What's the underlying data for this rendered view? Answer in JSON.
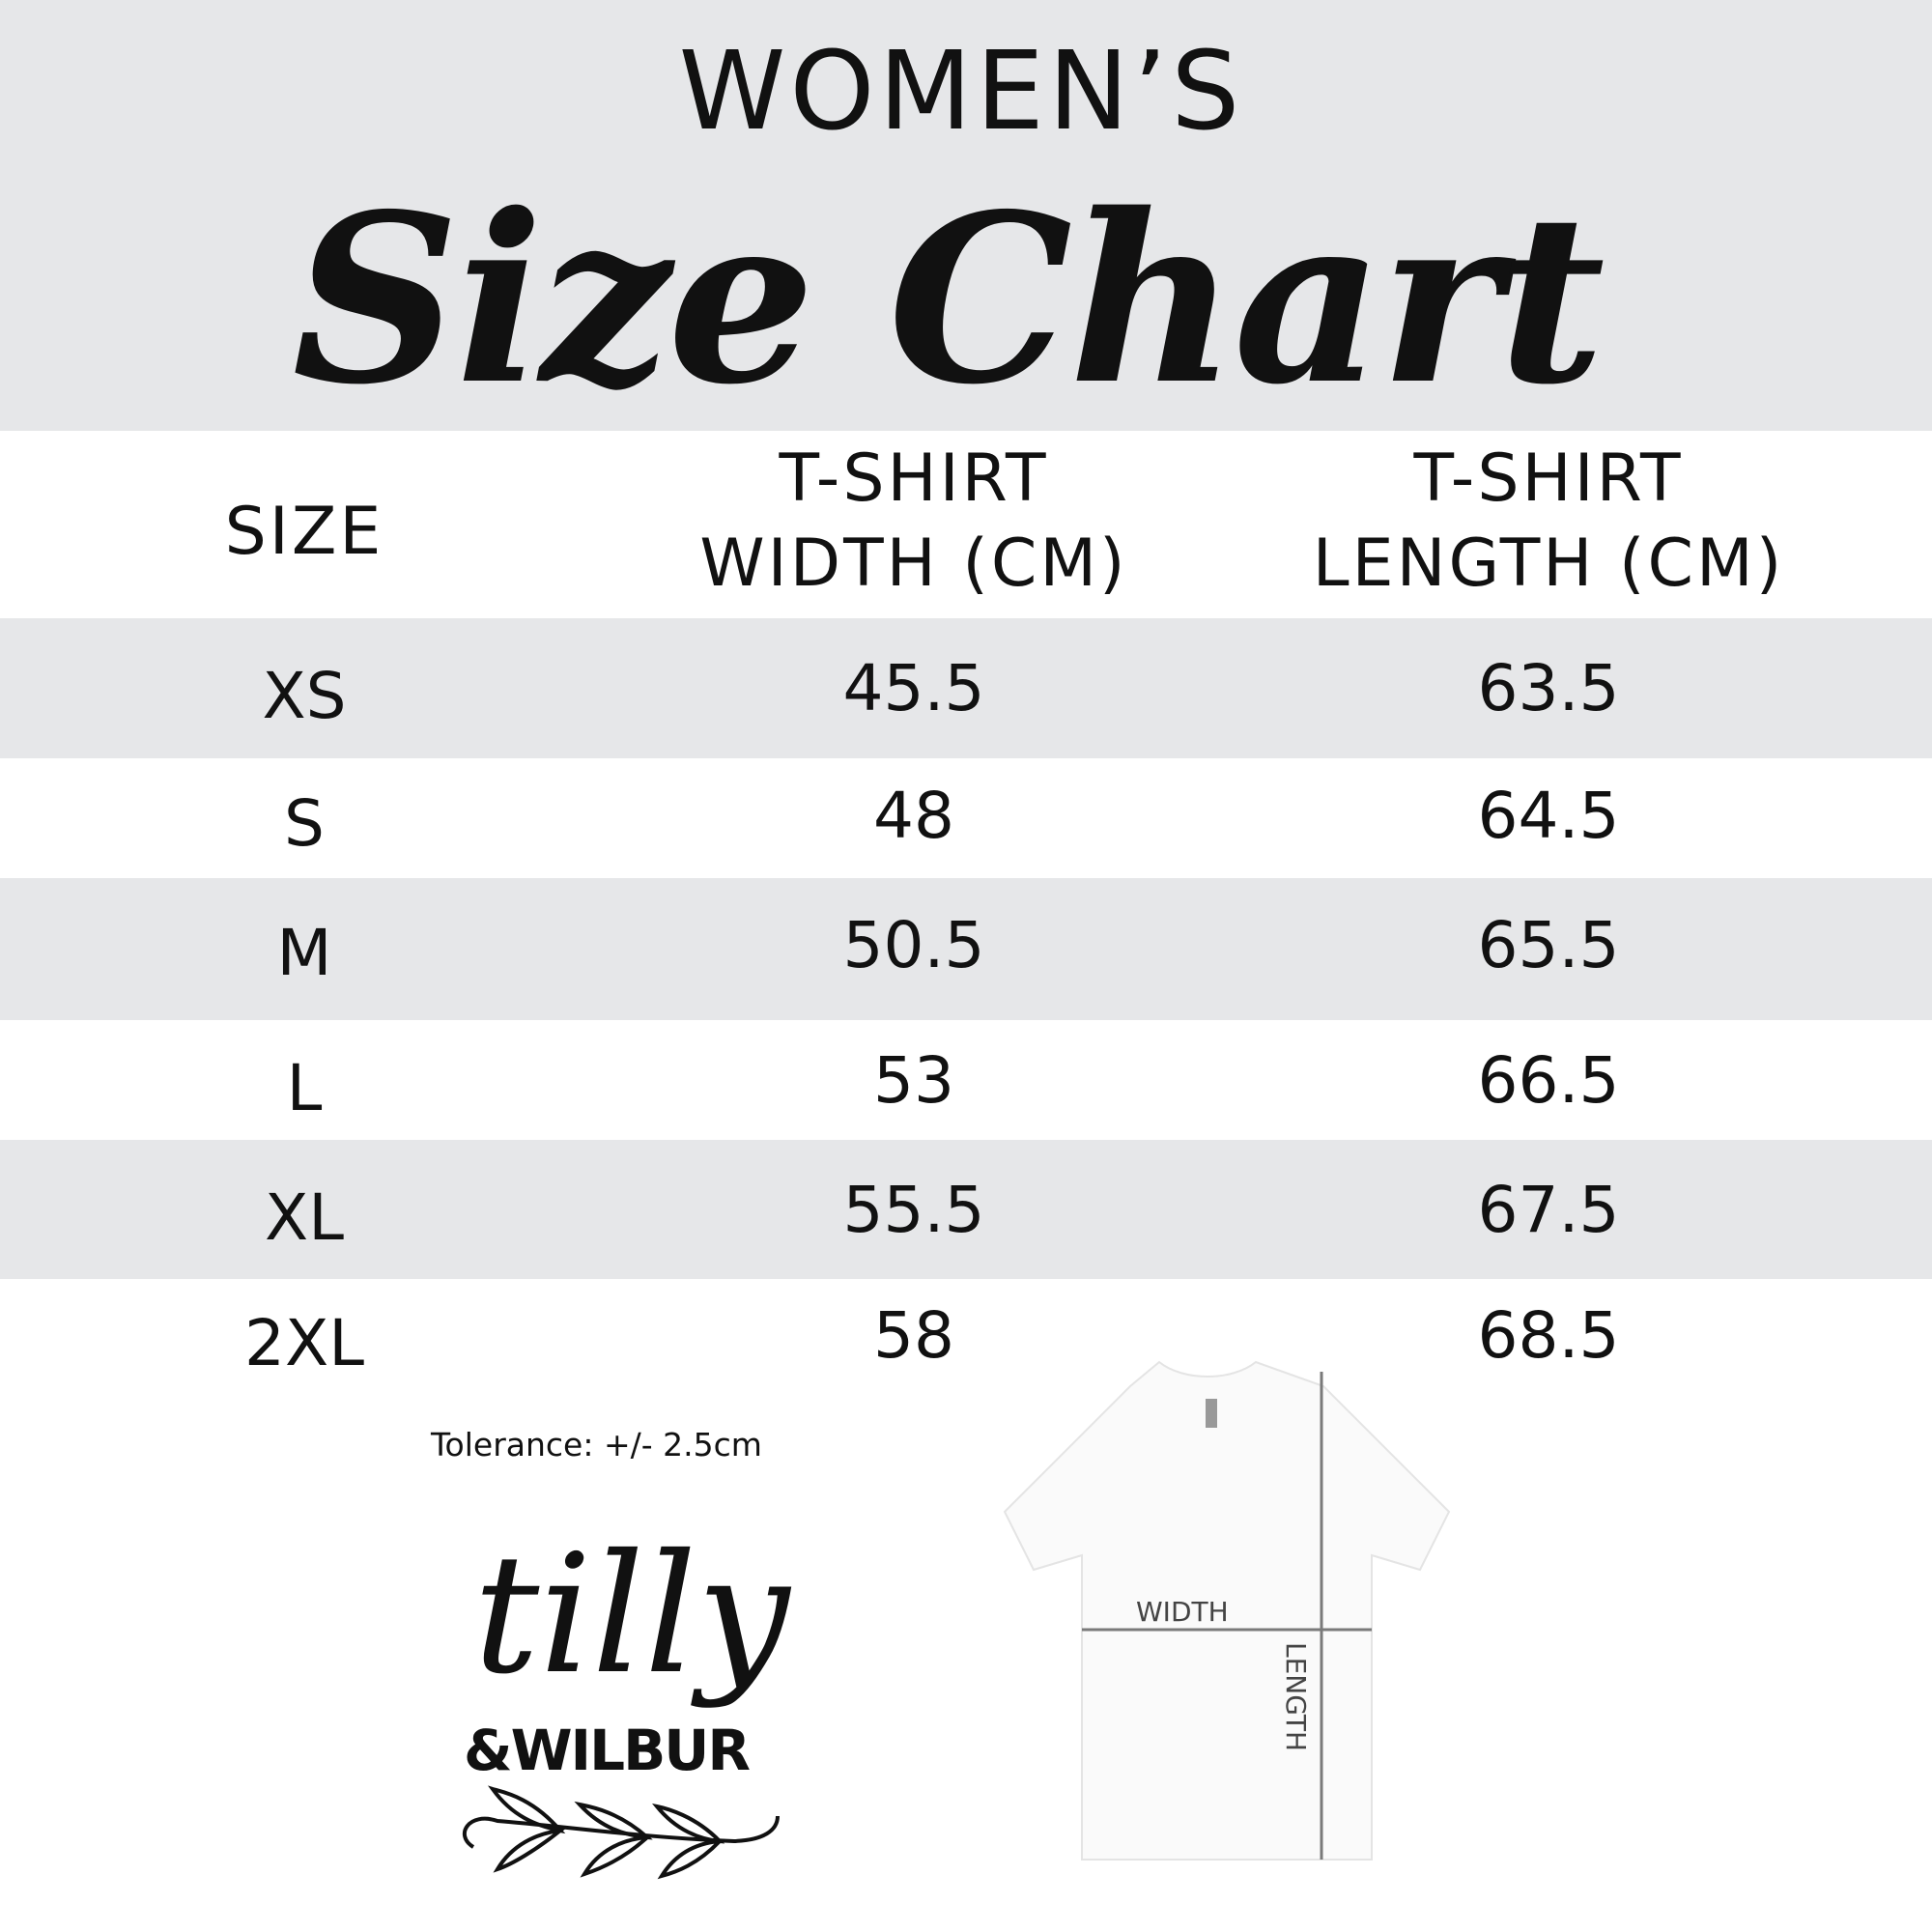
{
  "header": {
    "subtitle": "WOMEN’S",
    "title": "Size Chart"
  },
  "table": {
    "columns": [
      "SIZE",
      "T-SHIRT WIDTH (CM)",
      "T-SHIRT LENGTH (CM)"
    ],
    "col2_lines": [
      "T-SHIRT",
      "WIDTH (CM)"
    ],
    "col3_lines": [
      "T-SHIRT",
      "LENGTH (CM)"
    ],
    "rows": [
      {
        "size": "XS",
        "width": "45.5",
        "length": "63.5"
      },
      {
        "size": "S",
        "width": "48",
        "length": "64.5"
      },
      {
        "size": "M",
        "width": "50.5",
        "length": "65.5"
      },
      {
        "size": "L",
        "width": "53",
        "length": "66.5"
      },
      {
        "size": "XL",
        "width": "55.5",
        "length": "67.5"
      },
      {
        "size": "2XL",
        "width": "58",
        "length": "68.5"
      }
    ]
  },
  "tolerance": "Tolerance: +/- 2.5cm",
  "logo": {
    "line1": "tilly",
    "line2": "&WILBUR"
  },
  "diagram": {
    "width_label": "WIDTH",
    "length_label": "LENGTH"
  },
  "colors": {
    "band": "#e6e7e9",
    "text": "#111111",
    "measure_line": "#7a7a7a"
  }
}
